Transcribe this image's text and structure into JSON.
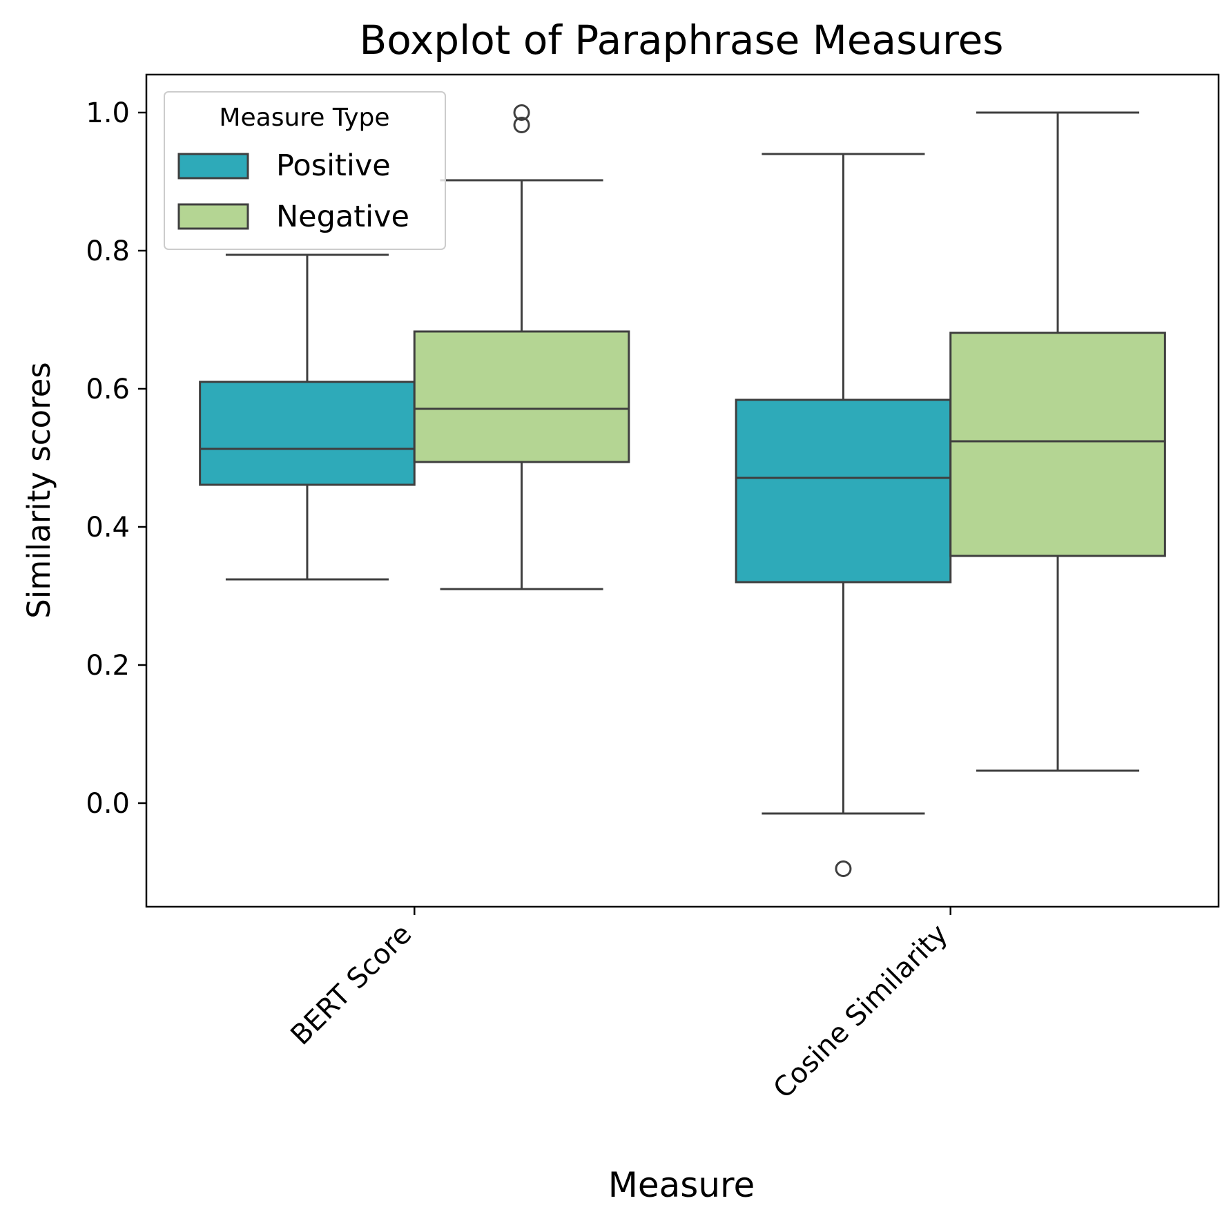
{
  "chart_data": {
    "type": "boxplot",
    "title": "Boxplot of Paraphrase Measures",
    "xlabel": "Measure",
    "ylabel": "Similarity scores",
    "ylim": [
      -0.15,
      1.055
    ],
    "yticks": [
      "0.0",
      "0.2",
      "0.4",
      "0.6",
      "0.8",
      "1.0"
    ],
    "ytick_values": [
      0.0,
      0.2,
      0.4,
      0.6,
      0.8,
      1.0
    ],
    "categories": [
      "BERT Score",
      "Cosine Similarity"
    ],
    "grid": false,
    "legend": {
      "title": "Measure Type",
      "position": "top-left",
      "entries": [
        "Positive",
        "Negative"
      ]
    },
    "series": [
      {
        "name": "Positive",
        "color": "#2eaab9",
        "boxes": [
          {
            "whisker_low": 0.324,
            "q1": 0.461,
            "median": 0.513,
            "q3": 0.61,
            "whisker_high": 0.794,
            "outliers": []
          },
          {
            "whisker_low": -0.015,
            "q1": 0.32,
            "median": 0.471,
            "q3": 0.584,
            "whisker_high": 0.94,
            "outliers": [
              -0.095
            ]
          }
        ]
      },
      {
        "name": "Negative",
        "color": "#b4d593",
        "boxes": [
          {
            "whisker_low": 0.31,
            "q1": 0.494,
            "median": 0.571,
            "q3": 0.683,
            "whisker_high": 0.902,
            "outliers": [
              0.982,
              1.0
            ]
          },
          {
            "whisker_low": 0.047,
            "q1": 0.358,
            "median": 0.524,
            "q3": 0.681,
            "whisker_high": 1.0,
            "outliers": []
          }
        ]
      }
    ]
  }
}
